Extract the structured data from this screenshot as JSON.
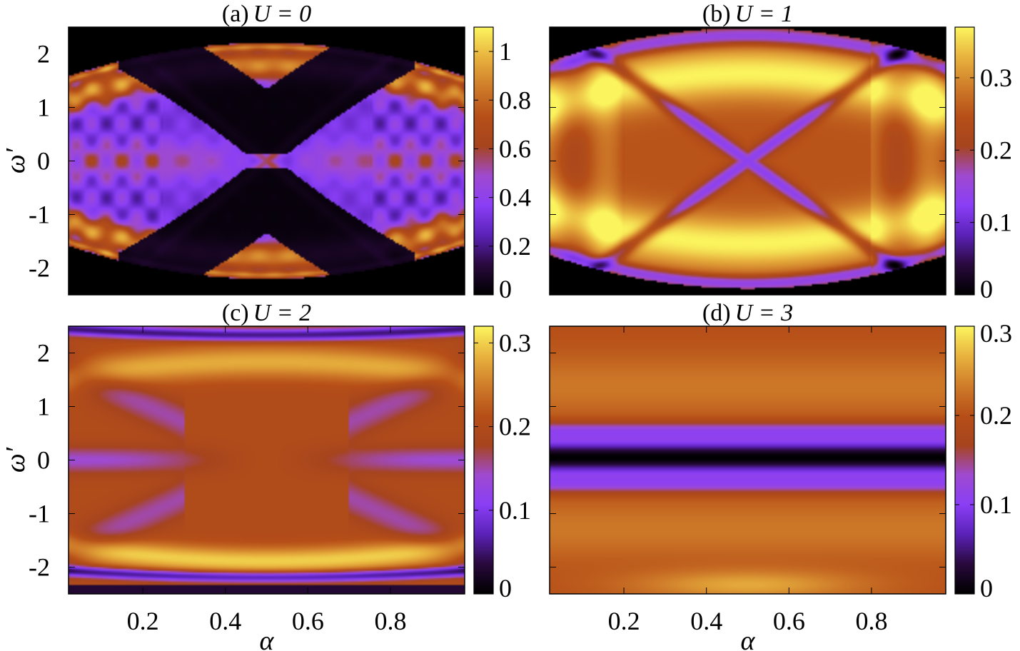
{
  "colors": {
    "colormap": [
      "#000000",
      "#2a0a3e",
      "#5b22b8",
      "#8a3ff6",
      "#9f4ad0",
      "#a6441e",
      "#b64f18",
      "#cf7c2a",
      "#e8b23e",
      "#fbf45e"
    ],
    "frame": "#000000",
    "background": "#ffffff"
  },
  "chart_data": [
    {
      "type": "heatmap",
      "title": "(a) U = 0",
      "title_prefix": "(a)",
      "title_math": "U = 0",
      "xlabel": "",
      "ylabel": "ω′",
      "x_tick_labels": [],
      "y_tick_labels": [
        "2",
        "1",
        "0",
        "-1",
        "-2"
      ],
      "y_ticks": [
        2,
        1,
        0,
        -1,
        -2
      ],
      "xlim": [
        0.02,
        0.98
      ],
      "ylim": [
        -2.5,
        2.5
      ],
      "colorbar": {
        "ticks": [
          0,
          0.2,
          0.4,
          0.6,
          0.8,
          1
        ],
        "tick_labels": [
          "0",
          "0.2",
          "0.4",
          "0.6",
          "0.8",
          "1"
        ],
        "range": [
          0,
          1.1
        ]
      },
      "model": {
        "U": 0,
        "vmax": 1.1
      }
    },
    {
      "type": "heatmap",
      "title": "(b) U = 1",
      "title_prefix": "(b)",
      "title_math": "U = 1",
      "xlabel": "",
      "ylabel": "",
      "x_tick_labels": [],
      "y_tick_labels": [],
      "y_ticks": [
        2,
        1,
        0,
        -1,
        -2
      ],
      "xlim": [
        0.02,
        0.98
      ],
      "ylim": [
        -2.5,
        2.5
      ],
      "colorbar": {
        "ticks": [
          0,
          0.1,
          0.2,
          0.3
        ],
        "tick_labels": [
          "0",
          "0.1",
          "0.2",
          "0.3"
        ],
        "range": [
          0,
          0.37
        ]
      },
      "model": {
        "U": 1,
        "vmax": 0.37
      }
    },
    {
      "type": "heatmap",
      "title": "(c) U = 2",
      "title_prefix": "(c)",
      "title_math": "U = 2",
      "xlabel": "α",
      "ylabel": "ω′",
      "x_ticks": [
        0.2,
        0.4,
        0.6,
        0.8
      ],
      "x_tick_labels": [
        "0.2",
        "0.4",
        "0.6",
        "0.8"
      ],
      "y_tick_labels": [
        "2",
        "1",
        "0",
        "-1",
        "-2"
      ],
      "y_ticks": [
        2,
        1,
        0,
        -1,
        -2
      ],
      "xlim": [
        0.02,
        0.98
      ],
      "ylim": [
        -2.5,
        2.5
      ],
      "colorbar": {
        "ticks": [
          0,
          0.1,
          0.2,
          0.3
        ],
        "tick_labels": [
          "0",
          "0.1",
          "0.2",
          "0.3"
        ],
        "range": [
          0,
          0.32
        ]
      },
      "model": {
        "U": 2,
        "vmax": 0.32
      }
    },
    {
      "type": "heatmap",
      "title": "(d) U = 3",
      "title_prefix": "(d)",
      "title_math": "U = 3",
      "xlabel": "α",
      "ylabel": "",
      "x_ticks": [
        0.2,
        0.4,
        0.6,
        0.8
      ],
      "x_tick_labels": [
        "0.2",
        "0.4",
        "0.6",
        "0.8"
      ],
      "y_tick_labels": [],
      "y_ticks": [
        2,
        1,
        0,
        -1,
        -2
      ],
      "xlim": [
        0.02,
        0.98
      ],
      "ylim": [
        -2.5,
        2.5
      ],
      "colorbar": {
        "ticks": [
          0,
          0.1,
          0.2,
          0.3
        ],
        "tick_labels": [
          "0",
          "0.1",
          "0.2",
          "0.3"
        ],
        "range": [
          0,
          0.3
        ]
      },
      "model": {
        "U": 3,
        "vmax": 0.3
      }
    }
  ]
}
